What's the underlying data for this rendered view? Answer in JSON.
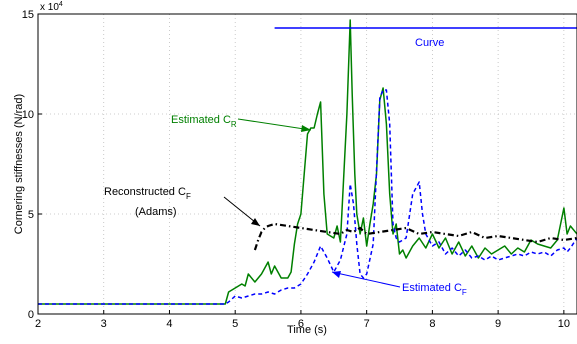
{
  "chart_data": {
    "type": "line",
    "xlabel": "Time (s)",
    "ylabel": "Cornering stiffnesses (N/rad)",
    "exponent_label": "x 10",
    "exponent_power": "4",
    "xlim": [
      2,
      10.2
    ],
    "ylim": [
      0,
      150000
    ],
    "xticks": [
      2,
      3,
      4,
      5,
      6,
      7,
      8,
      9,
      10
    ],
    "yticks": [
      0,
      50000,
      100000,
      150000
    ],
    "ytick_labels": [
      "0",
      "5",
      "10",
      "15"
    ],
    "grid": true,
    "series": [
      {
        "name": "Estimated C_R",
        "color": "#008000",
        "style": "solid",
        "x": [
          2,
          4.85,
          4.9,
          4.95,
          5.0,
          5.05,
          5.1,
          5.15,
          5.2,
          5.3,
          5.4,
          5.5,
          5.55,
          5.6,
          5.7,
          5.8,
          5.85,
          5.9,
          5.95,
          6.0,
          6.05,
          6.1,
          6.15,
          6.2,
          6.25,
          6.3,
          6.35,
          6.4,
          6.5,
          6.55,
          6.6,
          6.7,
          6.75,
          6.78,
          6.82,
          6.85,
          6.9,
          6.95,
          7.0,
          7.05,
          7.1,
          7.15,
          7.2,
          7.25,
          7.3,
          7.35,
          7.4,
          7.45,
          7.5,
          7.55,
          7.6,
          7.7,
          7.8,
          7.9,
          8.0,
          8.1,
          8.2,
          8.3,
          8.4,
          8.5,
          8.6,
          8.7,
          8.8,
          8.9,
          9.0,
          9.1,
          9.2,
          9.3,
          9.4,
          9.5,
          9.6,
          9.7,
          9.8,
          9.9,
          10.0,
          10.05,
          10.1,
          10.2
        ],
        "y": [
          5000,
          5000,
          11000,
          12000,
          13000,
          14000,
          15000,
          14000,
          20000,
          16000,
          20000,
          26000,
          20000,
          24000,
          18000,
          18000,
          21000,
          35000,
          45000,
          50000,
          70000,
          90000,
          93000,
          93000,
          100000,
          106000,
          60000,
          40000,
          38000,
          44000,
          36000,
          100000,
          147000,
          110000,
          70000,
          50000,
          40000,
          48000,
          34000,
          45000,
          55000,
          70000,
          107000,
          113000,
          95000,
          60000,
          40000,
          45000,
          30000,
          32000,
          28000,
          34000,
          38000,
          33000,
          40000,
          33000,
          38000,
          30000,
          36000,
          29000,
          34000,
          28000,
          33000,
          30000,
          32000,
          34000,
          30000,
          33000,
          31000,
          37000,
          35000,
          34000,
          33000,
          37000,
          53000,
          40000,
          44000,
          40000
        ]
      },
      {
        "name": "Estimated C_F",
        "color": "#0000ff",
        "style": "dashed",
        "x": [
          2,
          4.85,
          4.9,
          5.0,
          5.1,
          5.2,
          5.3,
          5.4,
          5.5,
          5.6,
          5.7,
          5.8,
          5.9,
          6.0,
          6.1,
          6.2,
          6.3,
          6.4,
          6.5,
          6.6,
          6.7,
          6.75,
          6.8,
          6.85,
          6.9,
          6.95,
          7.0,
          7.1,
          7.2,
          7.25,
          7.3,
          7.35,
          7.4,
          7.45,
          7.5,
          7.6,
          7.7,
          7.8,
          7.85,
          7.9,
          8.0,
          8.1,
          8.2,
          8.3,
          8.4,
          8.5,
          8.6,
          8.7,
          8.8,
          8.9,
          9.0,
          9.1,
          9.2,
          9.3,
          9.4,
          9.5,
          9.6,
          9.7,
          9.8,
          9.9,
          10.0,
          10.05,
          10.1,
          10.2
        ],
        "y": [
          5000,
          5000,
          6000,
          9000,
          8000,
          9000,
          10000,
          10000,
          11000,
          10000,
          12000,
          13000,
          13000,
          15000,
          20000,
          26000,
          34000,
          28000,
          21000,
          27000,
          40000,
          65000,
          55000,
          35000,
          20000,
          18000,
          20000,
          35000,
          108000,
          112000,
          112000,
          95000,
          45000,
          38000,
          36000,
          38000,
          60000,
          66000,
          50000,
          40000,
          34000,
          36000,
          30000,
          33000,
          29000,
          32000,
          28000,
          29000,
          27000,
          29000,
          27000,
          28000,
          29000,
          30000,
          29000,
          31000,
          30000,
          31000,
          29000,
          32000,
          33000,
          31000,
          33000,
          38000
        ]
      },
      {
        "name": "Reconstructed C_F (Adams)",
        "color": "#000000",
        "style": "dashdot",
        "x": [
          5.3,
          5.35,
          5.4,
          5.45,
          5.5,
          5.6,
          5.8,
          6.0,
          6.2,
          6.4,
          6.6,
          6.7,
          6.8,
          6.9,
          7.0,
          7.2,
          7.4,
          7.6,
          7.8,
          8.0,
          8.2,
          8.4,
          8.6,
          8.8,
          9.0,
          9.2,
          9.4,
          9.6,
          9.8,
          10.0,
          10.2
        ],
        "y": [
          32000,
          37000,
          41000,
          43000,
          44000,
          45000,
          44000,
          43000,
          42000,
          41000,
          40000,
          42000,
          41000,
          43000,
          40000,
          41000,
          42000,
          43000,
          40000,
          41000,
          40000,
          39000,
          41000,
          38000,
          39000,
          38000,
          37000,
          36000,
          38000,
          37000,
          38000
        ]
      },
      {
        "name": "Curve",
        "color": "#0000ff",
        "style": "solid",
        "x": [
          5.6,
          10.2
        ],
        "y": [
          143000,
          143000
        ]
      }
    ],
    "annotations": [
      {
        "text": "Estimated C",
        "sub": "R",
        "color": "#008000"
      },
      {
        "text": "Reconstructed C",
        "sub": "F",
        "color": "#000000"
      },
      {
        "text": "(Adams)",
        "sub": "",
        "color": "#000000"
      },
      {
        "text": "Estimated C",
        "sub": "F",
        "color": "#0000ff"
      },
      {
        "text": "Curve",
        "sub": "",
        "color": "#0000ff"
      }
    ]
  }
}
